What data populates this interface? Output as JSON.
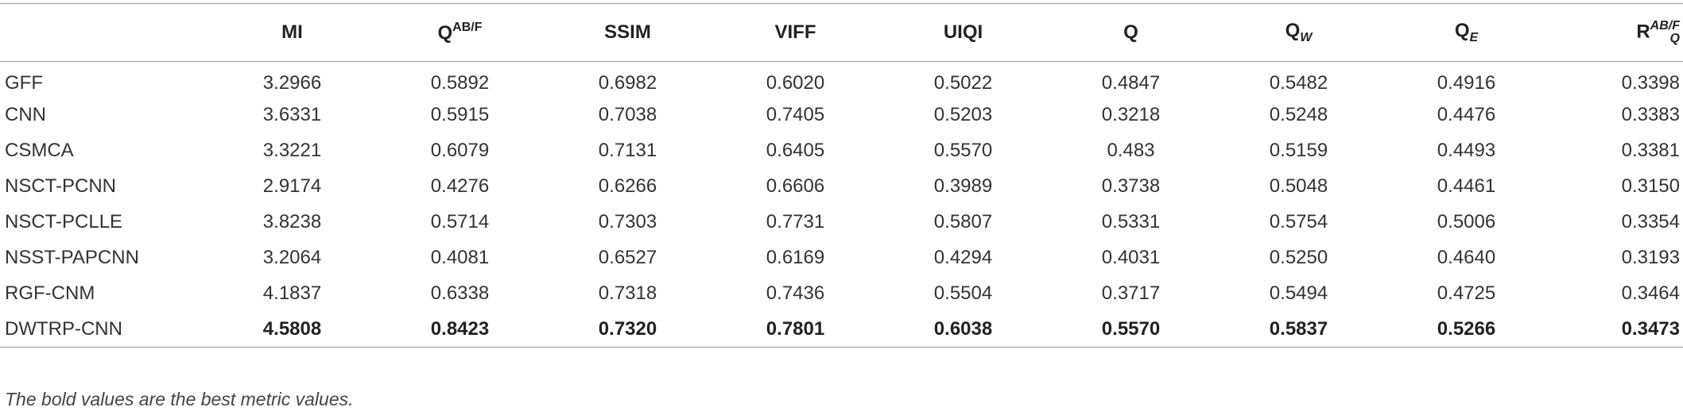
{
  "table": {
    "header": [
      {
        "text": ""
      },
      {
        "text": "MI"
      },
      {
        "text": "Q",
        "sup": "AB/F"
      },
      {
        "text": "SSIM"
      },
      {
        "text": "VIFF"
      },
      {
        "text": "UIQI"
      },
      {
        "text": "Q"
      },
      {
        "text": "Q",
        "sub": "W"
      },
      {
        "text": "Q",
        "sub": "E"
      },
      {
        "text": "R",
        "sup": "AB/F",
        "sub": "Q"
      }
    ],
    "rows": [
      {
        "label": "GFF",
        "values": [
          "3.2966",
          "0.5892",
          "0.6982",
          "0.6020",
          "0.5022",
          "0.4847",
          "0.5482",
          "0.4916",
          "0.3398"
        ]
      },
      {
        "label": "CNN",
        "values": [
          "3.6331",
          "0.5915",
          "0.7038",
          "0.7405",
          "0.5203",
          "0.3218",
          "0.5248",
          "0.4476",
          "0.3383"
        ]
      },
      {
        "label": "CSMCA",
        "values": [
          "3.3221",
          "0.6079",
          "0.7131",
          "0.6405",
          "0.5570",
          "0.483",
          "0.5159",
          "0.4493",
          "0.3381"
        ]
      },
      {
        "label": "NSCT-PCNN",
        "values": [
          "2.9174",
          "0.4276",
          "0.6266",
          "0.6606",
          "0.3989",
          "0.3738",
          "0.5048",
          "0.4461",
          "0.3150"
        ]
      },
      {
        "label": "NSCT-PCLLE",
        "values": [
          "3.8238",
          "0.5714",
          "0.7303",
          "0.7731",
          "0.5807",
          "0.5331",
          "0.5754",
          "0.5006",
          "0.3354"
        ]
      },
      {
        "label": "NSST-PAPCNN",
        "values": [
          "3.2064",
          "0.4081",
          "0.6527",
          "0.6169",
          "0.4294",
          "0.4031",
          "0.5250",
          "0.4640",
          "0.3193"
        ]
      },
      {
        "label": "RGF-CNM",
        "values": [
          "4.1837",
          "0.6338",
          "0.7318",
          "0.7436",
          "0.5504",
          "0.3717",
          "0.5494",
          "0.4725",
          "0.3464"
        ]
      },
      {
        "label": "DWTRP-CNN",
        "values": [
          "4.5808",
          "0.8423",
          "0.7320",
          "0.7801",
          "0.6038",
          "0.5570",
          "0.5837",
          "0.5266",
          "0.3473"
        ],
        "bold": true
      }
    ]
  },
  "footnote": "The bold values are the best metric values."
}
